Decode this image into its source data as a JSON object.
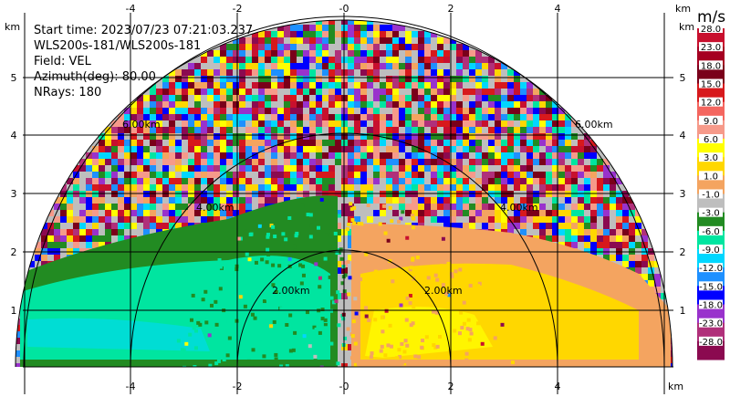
{
  "info": {
    "start_time": "Start time: 2023/07/23 07:21:03.237",
    "instrument": "WLS200s-181/WLS200s-181",
    "field": "Field: VEL",
    "azimuth": "Azimuth(deg): 80.00",
    "nrays": "NRays: 180"
  },
  "axes": {
    "unit": "km",
    "x_ticks": [
      "-4",
      "-2",
      "-0",
      "2",
      "4"
    ],
    "y_ticks": [
      "1",
      "2",
      "3",
      "4",
      "5"
    ]
  },
  "range_rings": [
    "2.00km",
    "4.00km",
    "6.00km"
  ],
  "colorbar": {
    "title": "m/s",
    "labels": [
      "28.0",
      "23.0",
      "18.0",
      "15.0",
      "12.0",
      "9.0",
      "6.0",
      "3.0",
      "1.0",
      "-1.0",
      "-3.0",
      "-6.0",
      "-9.0",
      "-12.0",
      "-15.0",
      "-18.0",
      "-23.0",
      "-28.0"
    ],
    "colors": [
      "#c8102e",
      "#a50021",
      "#7a001a",
      "#d7191c",
      "#f4665f",
      "#f69a8a",
      "#ffff00",
      "#ffd700",
      "#f4a460",
      "#bebebe",
      "#228b22",
      "#00e5a0",
      "#00d7ff",
      "#1e90ff",
      "#0000ff",
      "#9932cc",
      "#b0307a",
      "#8b0a50"
    ]
  }
}
